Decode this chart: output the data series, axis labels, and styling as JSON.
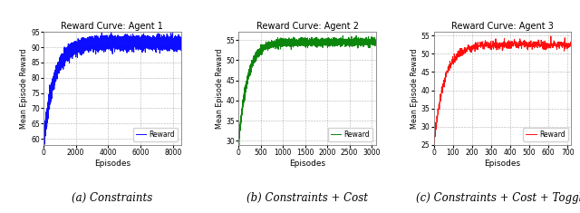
{
  "agent1": {
    "title": "Reward Curve: Agent 1",
    "color": "blue",
    "x_max": 8500,
    "x_ticks": [
      0,
      2000,
      4000,
      6000,
      8000
    ],
    "y_start": 58.5,
    "y_plateau": 91.5,
    "y_min": 58,
    "y_max": 95,
    "y_ticks": [
      60,
      65,
      70,
      75,
      80,
      85,
      90,
      95
    ],
    "xlabel": "Episodes",
    "ylabel": "Mean Episode Reward",
    "caption": "(a) Constraints",
    "noise_scale": 1.5,
    "plateau_noise": 1.0,
    "rise_rate": 0.0015,
    "n_points": 8500
  },
  "agent2": {
    "title": "Reward Curve: Agent 2",
    "color": "green",
    "x_max": 3100,
    "x_ticks": [
      0,
      500,
      1000,
      1500,
      2000,
      2500,
      3000
    ],
    "y_start": 29.5,
    "y_plateau": 54.5,
    "y_min": 29,
    "y_max": 57,
    "y_ticks": [
      30,
      35,
      40,
      45,
      50,
      55
    ],
    "xlabel": "Episodes",
    "ylabel": "Mean Episode Reward",
    "caption": "(b) Constraints + Cost",
    "noise_scale": 0.8,
    "plateau_noise": 0.5,
    "rise_rate": 0.005,
    "n_points": 3100
  },
  "agent3": {
    "title": "Reward Curve: Agent 3",
    "color": "red",
    "x_max": 720,
    "x_ticks": [
      0,
      100,
      200,
      300,
      400,
      500,
      600,
      700
    ],
    "y_start": 25.5,
    "y_plateau": 52.5,
    "y_min": 25,
    "y_max": 56,
    "y_ticks": [
      25,
      30,
      35,
      40,
      45,
      50,
      55
    ],
    "xlabel": "Episodes",
    "ylabel": "Mean Episode Reward",
    "caption": "(c) Constraints + Cost + Toggle",
    "noise_scale": 1.0,
    "plateau_noise": 0.6,
    "rise_rate": 0.018,
    "n_points": 720
  }
}
